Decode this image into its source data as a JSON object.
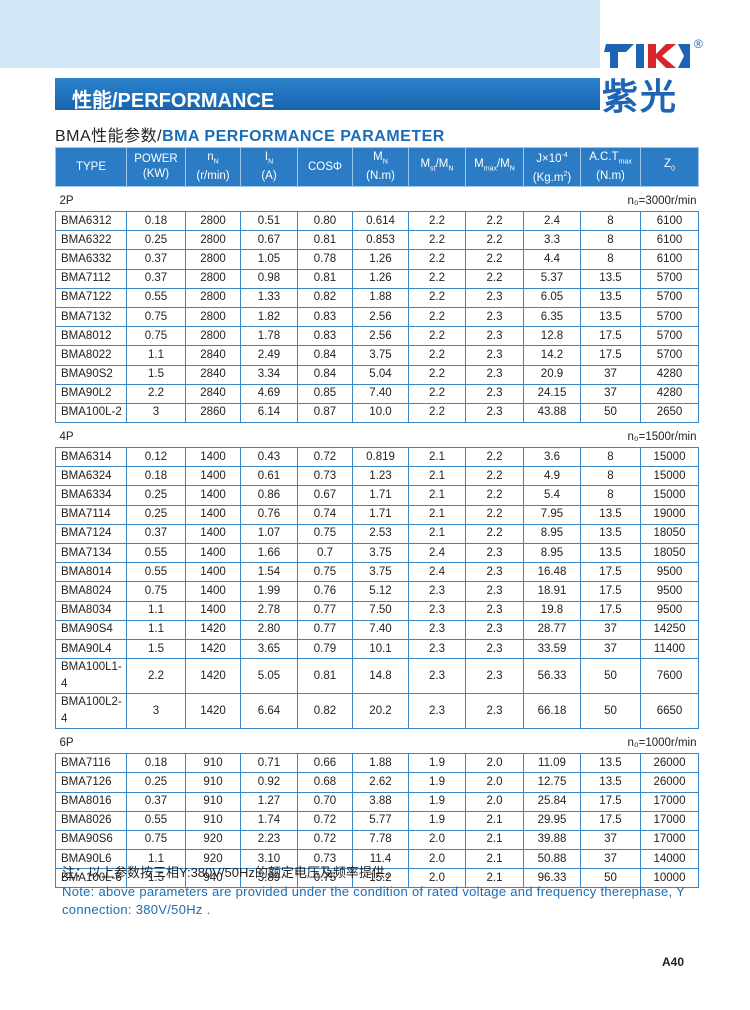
{
  "header": {
    "title": "性能/PERFORMANCE",
    "subtitle_cn": "BMA性能参数/",
    "subtitle_en": "BMA PERFORMANCE PARAMETER",
    "brand": "紫光",
    "registered": "®"
  },
  "table": {
    "columns": [
      [
        [
          {
            "text": "TYPE"
          }
        ]
      ],
      [
        [
          {
            "text": "POWER"
          }
        ],
        [
          {
            "text": "(KW)"
          }
        ]
      ],
      [
        [
          {
            "text": "n"
          },
          {
            "text": "N",
            "script": "sub"
          }
        ],
        [
          {
            "text": "(r/min)"
          }
        ]
      ],
      [
        [
          {
            "text": "I"
          },
          {
            "text": "N",
            "script": "sub"
          }
        ],
        [
          {
            "text": "(A)"
          }
        ]
      ],
      [
        [
          {
            "text": "COSΦ"
          }
        ]
      ],
      [
        [
          {
            "text": "M"
          },
          {
            "text": "N",
            "script": "sub"
          }
        ],
        [
          {
            "text": "(N.m)"
          }
        ]
      ],
      [
        [
          {
            "text": "M"
          },
          {
            "text": "st",
            "script": "sub"
          },
          {
            "text": "/M"
          },
          {
            "text": "N",
            "script": "sub"
          }
        ]
      ],
      [
        [
          {
            "text": "M"
          },
          {
            "text": "max",
            "script": "sub"
          },
          {
            "text": "/M"
          },
          {
            "text": "N",
            "script": "sub"
          }
        ]
      ],
      [
        [
          {
            "text": "J×10"
          },
          {
            "text": "-4",
            "script": "sup"
          }
        ],
        [
          {
            "text": "(Kg.m"
          },
          {
            "text": "2",
            "script": "sup"
          },
          {
            "text": ")"
          }
        ]
      ],
      [
        [
          {
            "text": "A.C.T"
          },
          {
            "text": "max",
            "script": "sub"
          }
        ],
        [
          {
            "text": "(N.m)"
          }
        ]
      ],
      [
        [
          {
            "text": "Z"
          },
          {
            "text": "0",
            "script": "sub"
          }
        ]
      ]
    ],
    "sections": [
      {
        "label": "2P",
        "note": "n₀=3000r/min",
        "rows": [
          [
            "BMA6312",
            "0.18",
            "2800",
            "0.51",
            "0.80",
            "0.614",
            "2.2",
            "2.2",
            "2.4",
            "8",
            "6100"
          ],
          [
            "BMA6322",
            "0.25",
            "2800",
            "0.67",
            "0.81",
            "0.853",
            "2.2",
            "2.2",
            "3.3",
            "8",
            "6100"
          ],
          [
            "BMA6332",
            "0.37",
            "2800",
            "1.05",
            "0.78",
            "1.26",
            "2.2",
            "2.2",
            "4.4",
            "8",
            "6100"
          ],
          [
            "BMA7112",
            "0.37",
            "2800",
            "0.98",
            "0.81",
            "1.26",
            "2.2",
            "2.2",
            "5.37",
            "13.5",
            "5700"
          ],
          [
            "BMA7122",
            "0.55",
            "2800",
            "1.33",
            "0.82",
            "1.88",
            "2.2",
            "2.3",
            "6.05",
            "13.5",
            "5700"
          ],
          [
            "BMA7132",
            "0.75",
            "2800",
            "1.82",
            "0.83",
            "2.56",
            "2.2",
            "2.3",
            "6.35",
            "13.5",
            "5700"
          ],
          [
            "BMA8012",
            "0.75",
            "2800",
            "1.78",
            "0.83",
            "2.56",
            "2.2",
            "2.3",
            "12.8",
            "17.5",
            "5700"
          ],
          [
            "BMA8022",
            "1.1",
            "2840",
            "2.49",
            "0.84",
            "3.75",
            "2.2",
            "2.3",
            "14.2",
            "17.5",
            "5700"
          ],
          [
            "BMA90S2",
            "1.5",
            "2840",
            "3.34",
            "0.84",
            "5.04",
            "2.2",
            "2.3",
            "20.9",
            "37",
            "4280"
          ],
          [
            "BMA90L2",
            "2.2",
            "2840",
            "4.69",
            "0.85",
            "7.40",
            "2.2",
            "2.3",
            "24.15",
            "37",
            "4280"
          ],
          [
            "BMA100L-2",
            "3",
            "2860",
            "6.14",
            "0.87",
            "10.0",
            "2.2",
            "2.3",
            "43.88",
            "50",
            "2650"
          ]
        ]
      },
      {
        "label": "4P",
        "note": "n₀=1500r/min",
        "rows": [
          [
            "BMA6314",
            "0.12",
            "1400",
            "0.43",
            "0.72",
            "0.819",
            "2.1",
            "2.2",
            "3.6",
            "8",
            "15000"
          ],
          [
            "BMA6324",
            "0.18",
            "1400",
            "0.61",
            "0.73",
            "1.23",
            "2.1",
            "2.2",
            "4.9",
            "8",
            "15000"
          ],
          [
            "BMA6334",
            "0.25",
            "1400",
            "0.86",
            "0.67",
            "1.71",
            "2.1",
            "2.2",
            "5.4",
            "8",
            "15000"
          ],
          [
            "BMA7114",
            "0.25",
            "1400",
            "0.76",
            "0.74",
            "1.71",
            "2.1",
            "2.2",
            "7.95",
            "13.5",
            "19000"
          ],
          [
            "BMA7124",
            "0.37",
            "1400",
            "1.07",
            "0.75",
            "2.53",
            "2.1",
            "2.2",
            "8.95",
            "13.5",
            "18050"
          ],
          [
            "BMA7134",
            "0.55",
            "1400",
            "1.66",
            "0.7",
            "3.75",
            "2.4",
            "2.3",
            "8.95",
            "13.5",
            "18050"
          ],
          [
            "BMA8014",
            "0.55",
            "1400",
            "1.54",
            "0.75",
            "3.75",
            "2.4",
            "2.3",
            "16.48",
            "17.5",
            "9500"
          ],
          [
            "BMA8024",
            "0.75",
            "1400",
            "1.99",
            "0.76",
            "5.12",
            "2.3",
            "2.3",
            "18.91",
            "17.5",
            "9500"
          ],
          [
            "BMA8034",
            "1.1",
            "1400",
            "2.78",
            "0.77",
            "7.50",
            "2.3",
            "2.3",
            "19.8",
            "17.5",
            "9500"
          ],
          [
            "BMA90S4",
            "1.1",
            "1420",
            "2.80",
            "0.77",
            "7.40",
            "2.3",
            "2.3",
            "28.77",
            "37",
            "14250"
          ],
          [
            "BMA90L4",
            "1.5",
            "1420",
            "3.65",
            "0.79",
            "10.1",
            "2.3",
            "2.3",
            "33.59",
            "37",
            "11400"
          ],
          [
            "BMA100L1-4",
            "2.2",
            "1420",
            "5.05",
            "0.81",
            "14.8",
            "2.3",
            "2.3",
            "56.33",
            "50",
            "7600"
          ],
          [
            "BMA100L2-4",
            "3",
            "1420",
            "6.64",
            "0.82",
            "20.2",
            "2.3",
            "2.3",
            "66.18",
            "50",
            "6650"
          ]
        ]
      },
      {
        "label": "6P",
        "note": "n₀=1000r/min",
        "rows": [
          [
            "BMA7116",
            "0.18",
            "910",
            "0.71",
            "0.66",
            "1.88",
            "1.9",
            "2.0",
            "11.09",
            "13.5",
            "26000"
          ],
          [
            "BMA7126",
            "0.25",
            "910",
            "0.92",
            "0.68",
            "2.62",
            "1.9",
            "2.0",
            "12.75",
            "13.5",
            "26000"
          ],
          [
            "BMA8016",
            "0.37",
            "910",
            "1.27",
            "0.70",
            "3.88",
            "1.9",
            "2.0",
            "25.84",
            "17.5",
            "17000"
          ],
          [
            "BMA8026",
            "0.55",
            "910",
            "1.74",
            "0.72",
            "5.77",
            "1.9",
            "2.1",
            "29.95",
            "17.5",
            "17000"
          ],
          [
            "BMA90S6",
            "0.75",
            "920",
            "2.23",
            "0.72",
            "7.78",
            "2.0",
            "2.1",
            "39.88",
            "37",
            "17000"
          ],
          [
            "BMA90L6",
            "1.1",
            "920",
            "3.10",
            "0.73",
            "11.4",
            "2.0",
            "2.1",
            "50.88",
            "37",
            "14000"
          ],
          [
            "BMA100L-6",
            "1.5",
            "940",
            "3.89",
            "0.75",
            "15.2",
            "2.0",
            "2.1",
            "96.33",
            "50",
            "10000"
          ]
        ]
      }
    ]
  },
  "notes": {
    "cn": "注：以上参数按三相Y:380V/50Hz的额定电压及频率提供。",
    "en": "Note: above parameters are provided under the condition of rated voltage and frequency therephase, Y connection: 380V/50Hz ."
  },
  "page_number": "A40"
}
